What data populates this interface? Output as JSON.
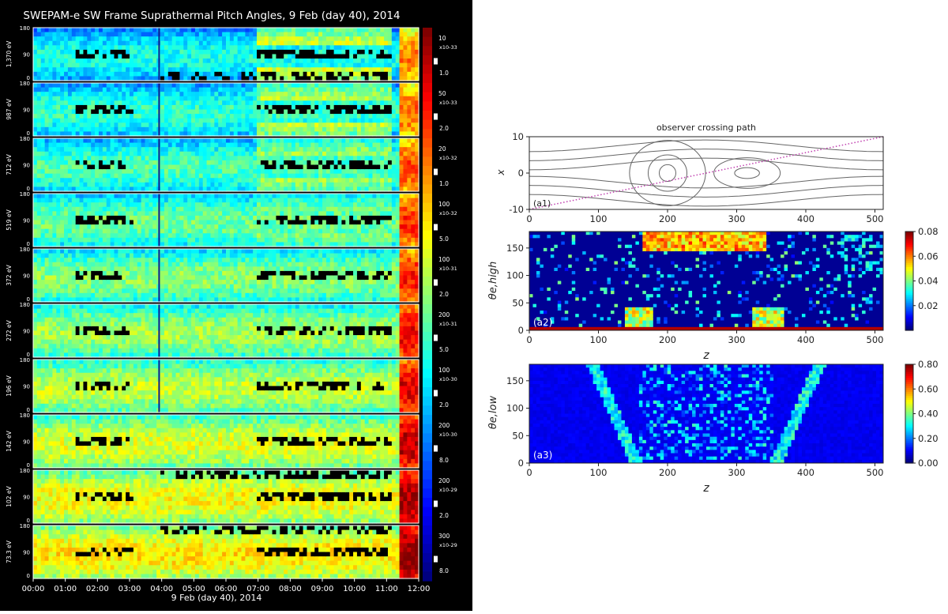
{
  "chart_data": [
    {
      "type": "heatmap",
      "title": "SWEPAM-e SW Frame Suprathermal Pitch Angles,  9 Feb (day 40), 2014",
      "xlabel": "9 Feb (day 40), 2014",
      "x_ticks": [
        "00:00",
        "01:00",
        "02:00",
        "03:00",
        "04:00",
        "05:00",
        "06:00",
        "07:00",
        "08:00",
        "09:00",
        "10:00",
        "11:00",
        "12:00"
      ],
      "y_ticks": [
        "0",
        "90",
        "180"
      ],
      "ylim": [
        0,
        180
      ],
      "panels": [
        {
          "energy": "1,370 eV",
          "cbar_top": "10",
          "cbar_exp": "-33",
          "cbar_bottom": "1.0"
        },
        {
          "energy": "987 eV",
          "cbar_top": "50",
          "cbar_exp": "-33",
          "cbar_bottom": "2.0"
        },
        {
          "energy": "712 eV",
          "cbar_top": "20",
          "cbar_exp": "-32",
          "cbar_bottom": "1.0"
        },
        {
          "energy": "519 eV",
          "cbar_top": "100",
          "cbar_exp": "-32",
          "cbar_bottom": "5.0"
        },
        {
          "energy": "372 eV",
          "cbar_top": "100",
          "cbar_exp": "-31",
          "cbar_bottom": "2.0"
        },
        {
          "energy": "272 eV",
          "cbar_top": "200",
          "cbar_exp": "-31",
          "cbar_bottom": "5.0"
        },
        {
          "energy": "196 eV",
          "cbar_top": "100",
          "cbar_exp": "-30",
          "cbar_bottom": "2.0"
        },
        {
          "energy": "142 eV",
          "cbar_top": "200",
          "cbar_exp": "-30",
          "cbar_bottom": "8.0"
        },
        {
          "energy": "102 eV",
          "cbar_top": "200",
          "cbar_exp": "-29",
          "cbar_bottom": "2.0"
        },
        {
          "energy": "73.3 eV",
          "cbar_top": "300",
          "cbar_exp": "-29",
          "cbar_bottom": "8.0"
        }
      ]
    },
    {
      "type": "line",
      "title": "observer crossing path",
      "label": "(a1)",
      "ylabel": "x",
      "xlim": [
        0,
        512
      ],
      "ylim": [
        -10,
        10
      ],
      "x_ticks": [
        0,
        100,
        200,
        300,
        400,
        500
      ],
      "y_ticks": [
        -10,
        0,
        10
      ],
      "path": {
        "x": [
          0,
          512
        ],
        "y": [
          -10,
          10
        ],
        "style": "dotted",
        "color": "#c040b0"
      }
    },
    {
      "type": "heatmap",
      "label": "(a2)",
      "xlabel": "z",
      "ylabel": "θe,high",
      "xlim": [
        0,
        512
      ],
      "ylim": [
        0,
        180
      ],
      "x_ticks": [
        0,
        100,
        200,
        300,
        400,
        500
      ],
      "y_ticks": [
        0,
        50,
        100,
        150
      ],
      "colorbar_ticks": [
        "0.02",
        "0.04",
        "0.06",
        "0.08"
      ],
      "colorbar_range": [
        0,
        0.08
      ]
    },
    {
      "type": "heatmap",
      "label": "(a3)",
      "xlabel": "z",
      "ylabel": "θe,low",
      "xlim": [
        0,
        512
      ],
      "ylim": [
        0,
        180
      ],
      "x_ticks": [
        0,
        100,
        200,
        300,
        400,
        500
      ],
      "y_ticks": [
        0,
        50,
        100,
        150
      ],
      "colorbar_ticks": [
        "0.00",
        "0.20",
        "0.40",
        "0.60",
        "0.80"
      ],
      "colorbar_range": [
        0,
        0.8
      ]
    }
  ]
}
